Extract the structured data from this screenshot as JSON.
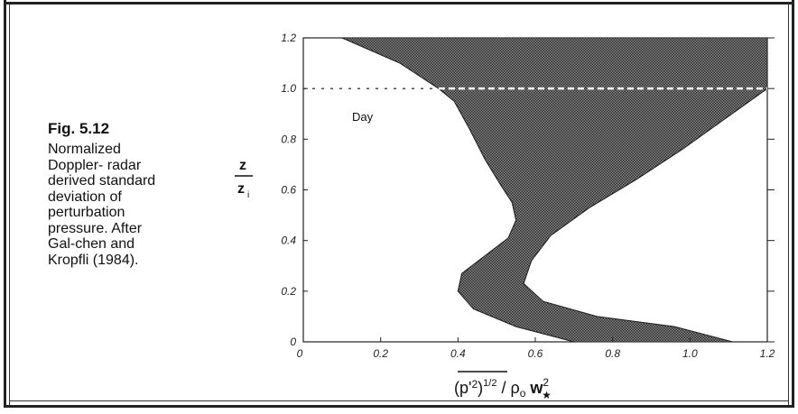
{
  "caption": {
    "title": "Fig. 5.12",
    "body": "Normalized\nDoppler- radar\nderived standard\ndeviation of\nperturbation\npressure.  After\nGal-chen and\nKropfli (1984)."
  },
  "chart_data": {
    "type": "area",
    "title": "",
    "xlabel": "(p'²)^1/2 / ρ₀ w★²",
    "ylabel": "z / zᵢ",
    "xlim": [
      0,
      1.2
    ],
    "ylim": [
      0,
      1.2
    ],
    "x_ticks": [
      "0",
      "0.2",
      "0.4",
      "0.6",
      "0.8",
      "1.0",
      "1.2"
    ],
    "y_ticks": [
      "0",
      "0.2",
      "0.4",
      "0.6",
      "0.8",
      "1.0",
      "1.2"
    ],
    "annotation": "Day",
    "reference_line_y": 1.0,
    "fill_color": "#555555",
    "series": [
      {
        "role": "lower-bound",
        "points": [
          [
            0.7,
            0.0
          ],
          [
            0.55,
            0.06
          ],
          [
            0.44,
            0.13
          ],
          [
            0.4,
            0.2
          ],
          [
            0.41,
            0.27
          ],
          [
            0.47,
            0.34
          ],
          [
            0.53,
            0.41
          ],
          [
            0.55,
            0.48
          ],
          [
            0.54,
            0.55
          ],
          [
            0.51,
            0.62
          ],
          [
            0.47,
            0.72
          ],
          [
            0.43,
            0.84
          ],
          [
            0.39,
            0.95
          ],
          [
            0.35,
            1.0
          ],
          [
            0.25,
            1.1
          ],
          [
            0.1,
            1.2
          ]
        ]
      },
      {
        "role": "upper-bound",
        "points": [
          [
            1.11,
            0.0
          ],
          [
            0.96,
            0.06
          ],
          [
            0.76,
            0.1
          ],
          [
            0.62,
            0.16
          ],
          [
            0.57,
            0.23
          ],
          [
            0.59,
            0.32
          ],
          [
            0.64,
            0.42
          ],
          [
            0.74,
            0.53
          ],
          [
            0.86,
            0.64
          ],
          [
            0.98,
            0.76
          ],
          [
            1.09,
            0.88
          ],
          [
            1.2,
            1.0
          ],
          [
            1.2,
            1.2
          ]
        ]
      }
    ]
  }
}
